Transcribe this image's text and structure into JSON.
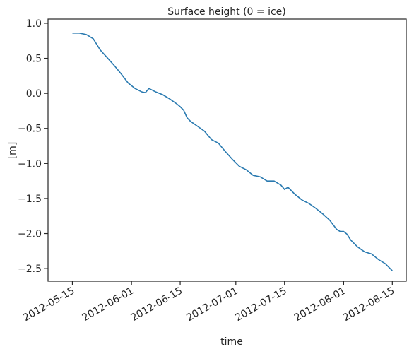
{
  "chart_data": {
    "type": "line",
    "title": "Surface height (0 = ice)",
    "xlabel": "time",
    "ylabel": "[m]",
    "x": [
      "2012-05-15",
      "2012-05-17",
      "2012-05-19",
      "2012-05-21",
      "2012-05-23",
      "2012-05-25",
      "2012-05-27",
      "2012-05-29",
      "2012-05-31",
      "2012-06-02",
      "2012-06-04",
      "2012-06-05",
      "2012-06-06",
      "2012-06-08",
      "2012-06-10",
      "2012-06-12",
      "2012-06-14",
      "2012-06-15",
      "2012-06-16",
      "2012-06-17",
      "2012-06-18",
      "2012-06-20",
      "2012-06-22",
      "2012-06-24",
      "2012-06-26",
      "2012-06-28",
      "2012-06-30",
      "2012-07-02",
      "2012-07-04",
      "2012-07-06",
      "2012-07-08",
      "2012-07-10",
      "2012-07-12",
      "2012-07-14",
      "2012-07-15",
      "2012-07-16",
      "2012-07-18",
      "2012-07-20",
      "2012-07-22",
      "2012-07-24",
      "2012-07-26",
      "2012-07-28",
      "2012-07-30",
      "2012-07-31",
      "2012-08-01",
      "2012-08-02",
      "2012-08-03",
      "2012-08-05",
      "2012-08-07",
      "2012-08-09",
      "2012-08-11",
      "2012-08-13",
      "2012-08-15"
    ],
    "series": [
      {
        "name": "Surface height",
        "color": "#2a7ab0",
        "values": [
          0.86,
          0.86,
          0.84,
          0.78,
          0.62,
          0.51,
          0.4,
          0.28,
          0.15,
          0.07,
          0.02,
          0.01,
          0.07,
          0.02,
          -0.02,
          -0.08,
          -0.15,
          -0.19,
          -0.24,
          -0.35,
          -0.4,
          -0.47,
          -0.54,
          -0.66,
          -0.71,
          -0.83,
          -0.94,
          -1.04,
          -1.09,
          -1.17,
          -1.19,
          -1.25,
          -1.25,
          -1.31,
          -1.37,
          -1.34,
          -1.44,
          -1.52,
          -1.57,
          -1.64,
          -1.72,
          -1.81,
          -1.94,
          -1.97,
          -1.97,
          -2.01,
          -2.09,
          -2.19,
          -2.26,
          -2.29,
          -2.37,
          -2.43,
          -2.53
        ]
      }
    ],
    "xlim": [
      "2012-05-08",
      "2012-08-19"
    ],
    "xticks": [
      "2012-05-15",
      "2012-06-01",
      "2012-06-15",
      "2012-07-01",
      "2012-07-15",
      "2012-08-01",
      "2012-08-15"
    ],
    "ylim": [
      -2.68,
      1.06
    ],
    "yticks": [
      {
        "value": 1,
        "label": "1.0"
      },
      {
        "value": 0.5,
        "label": "0.5"
      },
      {
        "value": 0,
        "label": "0.0"
      },
      {
        "value": -0.5,
        "label": "−0.5"
      },
      {
        "value": -1,
        "label": "−1.0"
      },
      {
        "value": -1.5,
        "label": "−1.5"
      },
      {
        "value": -2,
        "label": "−2.0"
      },
      {
        "value": -2.5,
        "label": "−2.5"
      }
    ],
    "grid": false
  }
}
